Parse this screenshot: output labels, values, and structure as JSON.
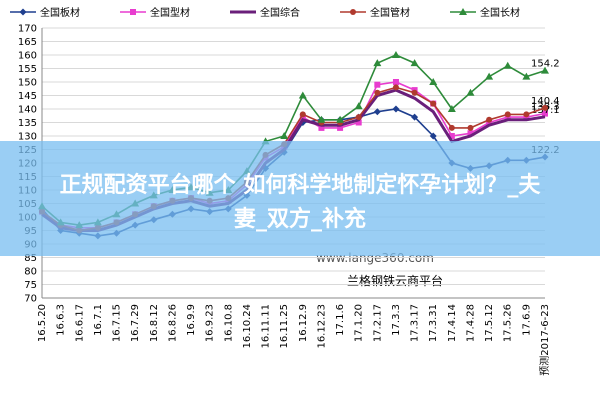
{
  "chart_data": {
    "type": "line",
    "categories": [
      "16.5.20",
      "16.6.3",
      "16.6.17",
      "16.7.1",
      "16.7.15",
      "16.7.29",
      "16.8.12",
      "16.8.26",
      "16.9.9",
      "16.9.23",
      "16.10.8",
      "16.10.24",
      "16.11.11",
      "16.11.25",
      "16.12.9",
      "16.12.23",
      "17.1.6",
      "17.1.20",
      "17.2.17",
      "17.3.3",
      "17.3.17",
      "17.3.31",
      "17.4.14",
      "17.4.28",
      "17.5.12",
      "17.5.26",
      "17.6.9",
      "预测2017-6-23"
    ],
    "series": [
      {
        "name": "全国板材",
        "color": "#1f3f8f",
        "marker": "diamond",
        "values": [
          103,
          95,
          94,
          93,
          94,
          97,
          99,
          101,
          103,
          102,
          103,
          108,
          118,
          124,
          135,
          136,
          136,
          137,
          139,
          140,
          137,
          130,
          120,
          118,
          119,
          121,
          121,
          122.2
        ]
      },
      {
        "name": "全国型材",
        "color": "#e83ccf",
        "marker": "square",
        "values": [
          102,
          97,
          96,
          96,
          98,
          101,
          104,
          106,
          107,
          105,
          106,
          112,
          122,
          126,
          137,
          133,
          133,
          135,
          149,
          150,
          147,
          142,
          130,
          131,
          135,
          137,
          137,
          138.3
        ]
      },
      {
        "name": "全国综合",
        "color": "#6a1f7a",
        "marker": "none",
        "values": [
          101,
          96,
          95,
          95,
          97,
          100,
          103,
          105,
          106,
          104,
          105,
          110,
          120,
          125,
          136,
          134,
          134,
          136,
          145,
          147,
          144,
          139,
          128,
          130,
          134,
          136,
          136,
          137.1
        ]
      },
      {
        "name": "全国管材",
        "color": "#b03a2e",
        "marker": "circle",
        "values": [
          102,
          97,
          95,
          96,
          98,
          101,
          104,
          106,
          107,
          106,
          107,
          113,
          123,
          127,
          138,
          135,
          135,
          137,
          146,
          148,
          146,
          142,
          133,
          133,
          136,
          138,
          138,
          140.4
        ]
      },
      {
        "name": "全国长材",
        "color": "#2e8b3a",
        "marker": "triangle",
        "values": [
          104,
          98,
          97,
          98,
          101,
          105,
          108,
          110,
          111,
          109,
          110,
          117,
          128,
          130,
          145,
          136,
          136,
          141,
          157,
          160,
          157,
          150,
          140,
          146,
          152,
          156,
          152,
          154.2
        ]
      }
    ],
    "ylim": [
      70,
      170
    ],
    "yticks": [
      70,
      75,
      80,
      85,
      90,
      95,
      100,
      105,
      110,
      115,
      120,
      125,
      130,
      135,
      140,
      145,
      150,
      155,
      160,
      165,
      170
    ],
    "grid": true,
    "watermark": "www.lange360.com",
    "source": "兰格钢铁云商平台",
    "banner": "正规配资平台哪个 如何科学地制定怀孕计划？_夫妻_双方_补充"
  }
}
